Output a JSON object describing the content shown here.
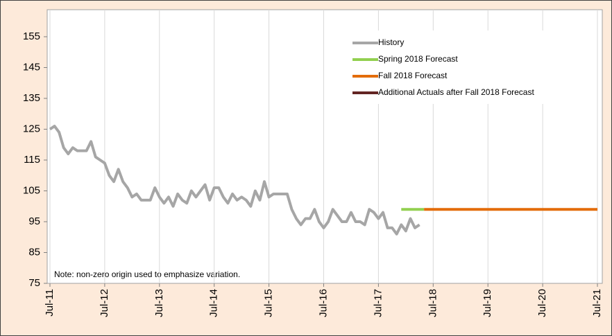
{
  "chart_data": {
    "type": "line",
    "annotation": "Note: non-zero origin used to emphasize variation.",
    "ylim": [
      75,
      157
    ],
    "yticks": [
      75,
      85,
      95,
      105,
      115,
      125,
      135,
      145,
      155
    ],
    "xlim": [
      "2011-07",
      "2021-07"
    ],
    "xticks": [
      {
        "value": "2011-07",
        "label": "Jul-11"
      },
      {
        "value": "2012-07",
        "label": "Jul-12"
      },
      {
        "value": "2013-07",
        "label": "Jul-13"
      },
      {
        "value": "2014-07",
        "label": "Jul-14"
      },
      {
        "value": "2015-07",
        "label": "Jul-15"
      },
      {
        "value": "2016-07",
        "label": "Jul-16"
      },
      {
        "value": "2017-07",
        "label": "Jul-17"
      },
      {
        "value": "2018-07",
        "label": "Jul-18"
      },
      {
        "value": "2019-07",
        "label": "Jul-19"
      },
      {
        "value": "2020-07",
        "label": "Jul-20"
      },
      {
        "value": "2021-07",
        "label": "Jul-21"
      }
    ],
    "grid": "x",
    "series": [
      {
        "name": "History",
        "color": "#a6a6a6",
        "x": [
          "2011-07",
          "2011-08",
          "2011-09",
          "2011-10",
          "2011-11",
          "2011-12",
          "2012-01",
          "2012-02",
          "2012-03",
          "2012-04",
          "2012-05",
          "2012-06",
          "2012-07",
          "2012-08",
          "2012-09",
          "2012-10",
          "2012-11",
          "2012-12",
          "2013-01",
          "2013-02",
          "2013-03",
          "2013-04",
          "2013-05",
          "2013-06",
          "2013-07",
          "2013-08",
          "2013-09",
          "2013-10",
          "2013-11",
          "2013-12",
          "2014-01",
          "2014-02",
          "2014-03",
          "2014-04",
          "2014-05",
          "2014-06",
          "2014-07",
          "2014-08",
          "2014-09",
          "2014-10",
          "2014-11",
          "2014-12",
          "2015-01",
          "2015-02",
          "2015-03",
          "2015-04",
          "2015-05",
          "2015-06",
          "2015-07",
          "2015-08",
          "2015-09",
          "2015-10",
          "2015-11",
          "2015-12",
          "2016-01",
          "2016-02",
          "2016-03",
          "2016-04",
          "2016-05",
          "2016-06",
          "2016-07",
          "2016-08",
          "2016-09",
          "2016-10",
          "2016-11",
          "2016-12",
          "2017-01",
          "2017-02",
          "2017-03",
          "2017-04",
          "2017-05",
          "2017-06",
          "2017-07",
          "2017-08",
          "2017-09",
          "2017-10",
          "2017-11",
          "2017-12",
          "2018-01",
          "2018-02",
          "2018-03",
          "2018-04"
        ],
        "values": [
          125,
          126,
          124,
          119,
          117,
          119,
          118,
          118,
          118,
          121,
          116,
          115,
          114,
          110,
          108,
          112,
          108,
          106,
          103,
          104,
          102,
          102,
          102,
          106,
          103,
          101,
          103,
          100,
          104,
          102,
          101,
          105,
          103,
          105,
          107,
          102,
          106,
          106,
          103,
          101,
          104,
          102,
          103,
          102,
          100,
          105,
          102,
          108,
          103,
          104,
          104,
          104,
          104,
          99,
          96,
          94,
          96,
          96,
          99,
          95,
          93,
          95,
          99,
          97,
          95,
          95,
          98,
          95,
          95,
          94,
          99,
          98,
          96,
          98,
          93,
          93,
          91,
          94,
          92,
          96,
          93,
          94
        ]
      },
      {
        "name": "Spring 2018 Forecast",
        "color": "#92d050",
        "x": [
          "2017-12",
          "2018-05"
        ],
        "values": [
          99,
          99
        ]
      },
      {
        "name": "Fall 2018 Forecast",
        "color": "#e36c09",
        "x": [
          "2018-05",
          "2021-07"
        ],
        "values": [
          99,
          99
        ]
      },
      {
        "name": "Additional Actuals after Fall 2018 Forecast",
        "color": "#632523",
        "x": [],
        "values": []
      }
    ]
  }
}
